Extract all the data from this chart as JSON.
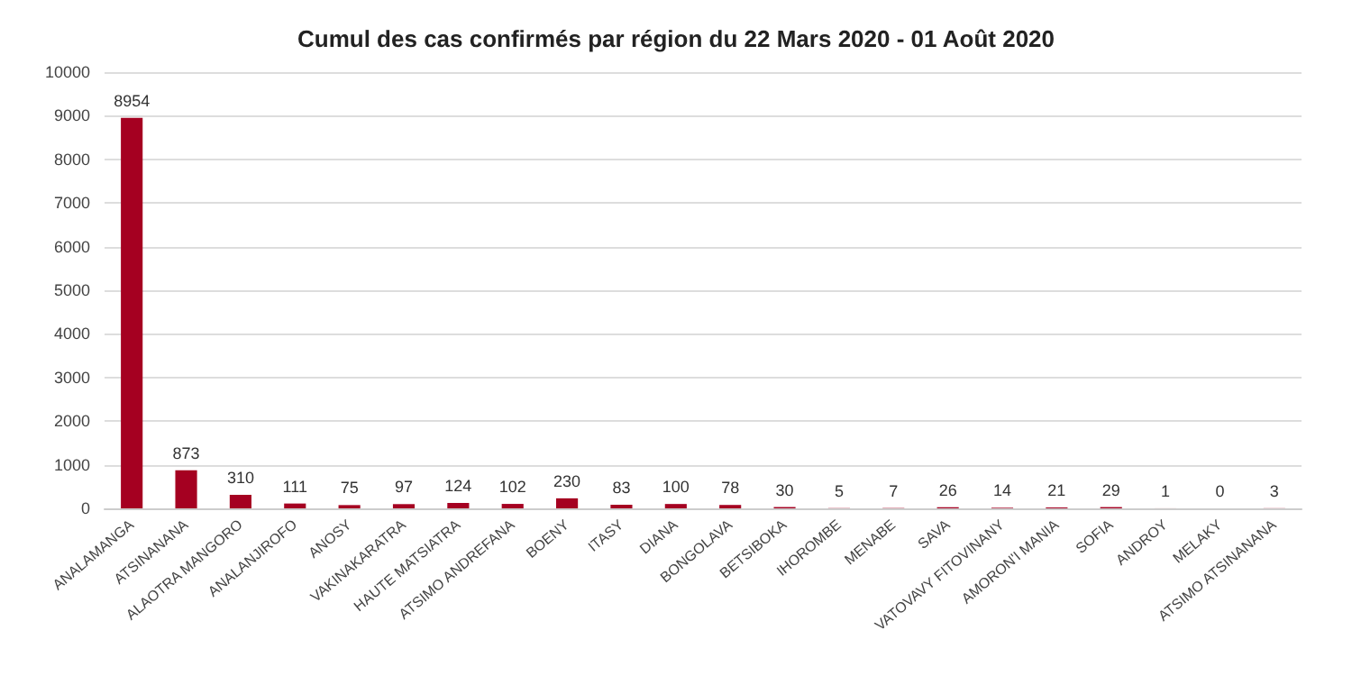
{
  "chart_data": {
    "type": "bar",
    "title": "Cumul des cas confirmés par région du 22 Mars 2020 - 01 Août 2020",
    "categories": [
      "ANALAMANGA",
      "ATSINANANA",
      "ALAOTRA MANGORO",
      "ANALANJIROFO",
      "ANOSY",
      "VAKINAKARATRA",
      "HAUTE MATSIATRA",
      "ATSIMO ANDREFANA",
      "BOENY",
      "ITASY",
      "DIANA",
      "BONGOLAVA",
      "BETSIBOKA",
      "IHOROMBE",
      "MENABE",
      "SAVA",
      "VATOVAVY FITOVINANY",
      "AMORON'I MANIA",
      "SOFIA",
      "ANDROY",
      "MELAKY",
      "ATSIMO ATSINANANA"
    ],
    "values": [
      8954,
      873,
      310,
      111,
      75,
      97,
      124,
      102,
      230,
      83,
      100,
      78,
      30,
      5,
      7,
      26,
      14,
      21,
      29,
      1,
      0,
      3
    ],
    "color": "#a50021",
    "data_labels": true,
    "grid": "y",
    "ylim": [
      0,
      10000
    ],
    "yticks": [
      0,
      1000,
      2000,
      3000,
      4000,
      5000,
      6000,
      7000,
      8000,
      9000,
      10000
    ]
  }
}
